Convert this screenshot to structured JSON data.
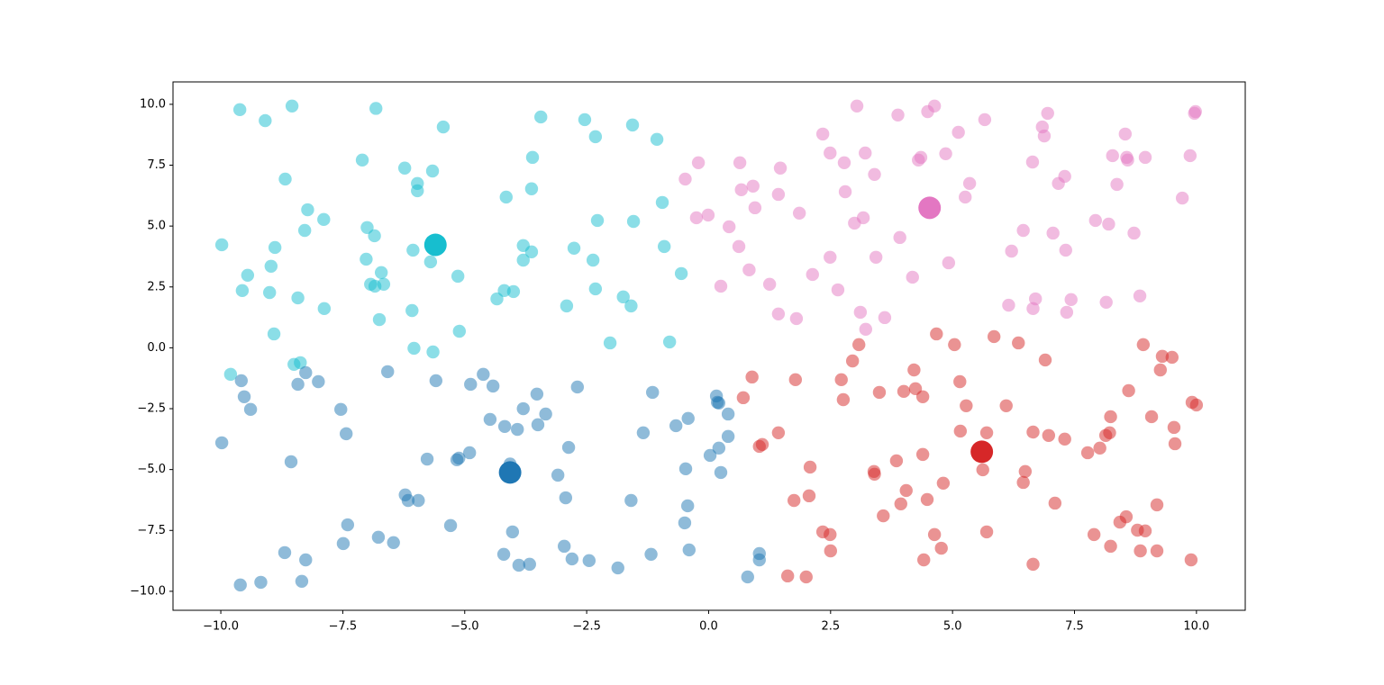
{
  "chart_data": {
    "type": "scatter",
    "xlim": [
      -10.98,
      11.0
    ],
    "ylim": [
      -10.78,
      10.92
    ],
    "xticks": [
      {
        "value": -10,
        "label": "−10.0"
      },
      {
        "value": -7.5,
        "label": "−7.5"
      },
      {
        "value": -5,
        "label": "−5.0"
      },
      {
        "value": -2.5,
        "label": "−2.5"
      },
      {
        "value": 0,
        "label": "0.0"
      },
      {
        "value": 2.5,
        "label": "2.5"
      },
      {
        "value": 5,
        "label": "5.0"
      },
      {
        "value": 7.5,
        "label": "7.5"
      },
      {
        "value": 10,
        "label": "10.0"
      }
    ],
    "yticks": [
      {
        "value": -10,
        "label": "−10.0"
      },
      {
        "value": -7.5,
        "label": "−7.5"
      },
      {
        "value": -5,
        "label": "−5.0"
      },
      {
        "value": -2.5,
        "label": "−2.5"
      },
      {
        "value": 0,
        "label": "0.0"
      },
      {
        "value": 2.5,
        "label": "2.5"
      },
      {
        "value": 5,
        "label": "5.0"
      },
      {
        "value": 7.5,
        "label": "7.5"
      },
      {
        "value": 10,
        "label": "10.0"
      }
    ],
    "grid": false,
    "series": [
      {
        "color": "#17becf",
        "opacity": 0.5,
        "marker_size": 100,
        "x": [
          -9.61,
          -9.09,
          -8.54,
          -6.82,
          -3.44,
          -5.44,
          -2.54,
          -1.56,
          -2.32,
          -1.06,
          -7.1,
          -8.68,
          -6.23,
          -5.66,
          -5.97,
          -5.97,
          -3.61,
          -3.63,
          -4.15,
          -8.22,
          -7.89,
          -8.28,
          -9.98,
          -7.0,
          -6.85,
          -8.89,
          -6.06,
          -2.28,
          -1.54,
          -0.95,
          -0.91,
          -3.8,
          -3.63,
          -2.76,
          -3.8,
          -2.37,
          -7.02,
          -5.7,
          -9.45,
          -8.97,
          -6.71,
          -5.14,
          -0.56,
          -9.56,
          -9.0,
          -6.93,
          -6.84,
          -6.66,
          -8.42,
          -4.19,
          -4.0,
          -4.34,
          -2.32,
          -1.75,
          -2.91,
          -1.59,
          -7.88,
          -6.75,
          -6.08,
          -8.91,
          -5.11,
          -6.04,
          -5.65,
          -2.02,
          -0.8,
          -9.8,
          -8.5,
          -8.37
        ],
        "y": [
          9.78,
          9.33,
          9.93,
          9.83,
          9.48,
          9.07,
          9.37,
          9.15,
          8.67,
          8.56,
          7.71,
          6.93,
          7.38,
          7.26,
          6.75,
          6.45,
          7.82,
          6.53,
          6.19,
          5.67,
          5.27,
          4.82,
          4.23,
          4.94,
          4.6,
          4.12,
          4.01,
          5.23,
          5.19,
          5.97,
          4.16,
          4.2,
          3.94,
          4.09,
          3.6,
          3.6,
          3.64,
          3.53,
          2.98,
          3.35,
          3.09,
          2.94,
          3.05,
          2.35,
          2.27,
          2.61,
          2.53,
          2.61,
          2.05,
          2.35,
          2.31,
          2.01,
          2.42,
          2.09,
          1.72,
          1.72,
          1.61,
          1.16,
          1.53,
          0.57,
          0.68,
          -0.02,
          -0.17,
          0.2,
          0.24,
          -1.09,
          -0.68,
          -0.61
        ]
      },
      {
        "color": "#1f77b4",
        "opacity": 0.5,
        "marker_size": 100,
        "x": [
          -9.58,
          -6.58,
          -8.26,
          -9.52,
          -9.39,
          -8.42,
          -8.0,
          -5.59,
          -4.62,
          -4.88,
          -4.42,
          -3.52,
          -2.69,
          -3.8,
          -3.34,
          -7.54,
          -1.15,
          0.16,
          0.18,
          0.21,
          0.4,
          -4.48,
          -4.18,
          -3.92,
          -3.5,
          -0.67,
          -0.42,
          -9.98,
          -7.43,
          -1.34,
          0.4,
          -2.87,
          0.21,
          -4.9,
          0.03,
          -5.77,
          -5.16,
          -5.12,
          -8.56,
          -4.07,
          -0.47,
          0.25,
          -3.09,
          -6.22,
          -6.16,
          -5.95,
          -2.93,
          -1.59,
          -0.43,
          -7.4,
          -5.29,
          -0.49,
          -4.02,
          -7.49,
          -6.77,
          -6.46,
          -8.69,
          -8.26,
          -4.2,
          -2.96,
          -2.8,
          -2.45,
          -1.18,
          -0.4,
          -3.67,
          -3.89,
          -1.86,
          1.04,
          1.04,
          0.8,
          -9.6,
          -9.18,
          -8.34
        ],
        "y": [
          -1.35,
          -0.98,
          -1.02,
          -2.01,
          -2.53,
          -1.5,
          -1.39,
          -1.35,
          -1.09,
          -1.5,
          -1.57,
          -1.9,
          -1.61,
          -2.5,
          -2.72,
          -2.53,
          -1.83,
          -1.98,
          -2.24,
          -2.27,
          -2.72,
          -2.94,
          -3.23,
          -3.35,
          -3.16,
          -3.2,
          -2.9,
          -3.9,
          -3.53,
          -3.49,
          -3.64,
          -4.09,
          -4.12,
          -4.31,
          -4.42,
          -4.57,
          -4.6,
          -4.53,
          -4.68,
          -4.77,
          -4.97,
          -5.12,
          -5.23,
          -6.04,
          -6.27,
          -6.27,
          -6.16,
          -6.27,
          -6.49,
          -7.27,
          -7.3,
          -7.19,
          -7.56,
          -8.04,
          -7.78,
          -8.0,
          -8.41,
          -8.71,
          -8.48,
          -8.15,
          -8.67,
          -8.74,
          -8.48,
          -8.3,
          -8.89,
          -8.93,
          -9.04,
          -8.45,
          -8.71,
          -9.41,
          -9.74,
          -9.63,
          -9.59
        ]
      },
      {
        "color": "#e377c2",
        "opacity": 0.5,
        "marker_size": 100,
        "x": [
          3.04,
          4.63,
          4.49,
          3.88,
          6.95,
          5.66,
          9.98,
          9.96,
          6.84,
          6.88,
          5.12,
          2.34,
          8.54,
          2.49,
          3.21,
          4.86,
          4.35,
          4.3,
          2.78,
          -0.21,
          0.64,
          8.28,
          8.57,
          8.59,
          8.95,
          9.87,
          6.64,
          1.47,
          3.4,
          7.3,
          -0.48,
          7.17,
          5.35,
          8.37,
          0.91,
          0.67,
          2.8,
          1.43,
          5.26,
          9.71,
          0.95,
          1.86,
          3.17,
          2.99,
          -0.25,
          -0.01,
          0.42,
          6.45,
          7.93,
          8.2,
          7.06,
          8.72,
          0.62,
          3.92,
          6.21,
          7.32,
          2.49,
          3.43,
          4.92,
          0.83,
          2.13,
          4.18,
          1.25,
          0.25,
          2.65,
          8.84,
          6.7,
          7.43,
          8.15,
          6.15,
          6.65,
          7.34,
          3.11,
          1.43,
          1.8,
          3.61,
          3.22
        ],
        "y": [
          9.93,
          9.93,
          9.7,
          9.56,
          9.63,
          9.37,
          9.7,
          9.63,
          9.07,
          8.7,
          8.85,
          8.78,
          8.78,
          8.0,
          8.0,
          7.97,
          7.82,
          7.71,
          7.6,
          7.6,
          7.6,
          7.89,
          7.82,
          7.71,
          7.82,
          7.89,
          7.63,
          7.38,
          7.12,
          7.04,
          6.93,
          6.75,
          6.75,
          6.71,
          6.64,
          6.49,
          6.41,
          6.3,
          6.19,
          6.15,
          5.75,
          5.53,
          5.34,
          5.12,
          5.34,
          5.45,
          4.97,
          4.82,
          5.23,
          5.08,
          4.71,
          4.71,
          4.16,
          4.53,
          3.97,
          4.01,
          3.72,
          3.72,
          3.49,
          3.2,
          3.01,
          2.9,
          2.61,
          2.53,
          2.38,
          2.13,
          2.01,
          1.98,
          1.87,
          1.75,
          1.61,
          1.46,
          1.46,
          1.39,
          1.2,
          1.24,
          0.76
        ]
      },
      {
        "color": "#d62728",
        "opacity": 0.5,
        "marker_size": 100,
        "x": [
          4.67,
          5.85,
          6.35,
          3.08,
          5.04,
          8.91,
          9.3,
          9.5,
          6.9,
          2.95,
          4.21,
          9.26,
          0.89,
          1.78,
          2.72,
          5.15,
          4.24,
          3.5,
          4.0,
          8.61,
          0.71,
          2.76,
          4.39,
          5.28,
          6.1,
          9.91,
          10.0,
          9.08,
          8.24,
          1.43,
          5.16,
          5.7,
          6.65,
          6.97,
          7.3,
          8.22,
          8.14,
          9.54,
          9.56,
          8.02,
          7.77,
          1.1,
          1.04,
          4.39,
          3.85,
          2.08,
          3.39,
          3.4,
          5.62,
          6.49,
          6.45,
          4.81,
          4.05,
          2.06,
          1.75,
          4.48,
          3.94,
          7.1,
          9.19,
          3.58,
          8.56,
          8.43,
          2.34,
          2.49,
          4.63,
          5.7,
          7.9,
          8.79,
          8.95,
          2.5,
          4.77,
          8.24,
          8.85,
          9.19,
          4.41,
          6.65,
          9.89,
          1.62,
          2.0
        ],
        "y": [
          0.57,
          0.46,
          0.2,
          0.13,
          0.13,
          0.13,
          -0.35,
          -0.39,
          -0.5,
          -0.54,
          -0.91,
          -0.91,
          -1.2,
          -1.31,
          -1.31,
          -1.39,
          -1.68,
          -1.83,
          -1.79,
          -1.76,
          -2.05,
          -2.13,
          -2.01,
          -2.38,
          -2.38,
          -2.24,
          -2.35,
          -2.83,
          -2.83,
          -3.49,
          -3.42,
          -3.49,
          -3.46,
          -3.6,
          -3.75,
          -3.49,
          -3.6,
          -3.27,
          -3.94,
          -4.12,
          -4.31,
          -3.97,
          -4.05,
          -4.38,
          -4.64,
          -4.9,
          -5.08,
          -5.19,
          -5.01,
          -5.08,
          -5.53,
          -5.56,
          -5.86,
          -6.08,
          -6.27,
          -6.23,
          -6.41,
          -6.38,
          -6.45,
          -6.9,
          -6.94,
          -7.16,
          -7.56,
          -7.67,
          -7.67,
          -7.56,
          -7.67,
          -7.49,
          -7.52,
          -8.34,
          -8.23,
          -8.15,
          -8.34,
          -8.34,
          -8.71,
          -8.89,
          -8.71,
          -9.37,
          -9.41
        ]
      },
      {
        "color": "#17becf",
        "opacity": 1,
        "marker_size": 300,
        "x": [
          -5.6
        ],
        "y": [
          4.23
        ]
      },
      {
        "color": "#1f77b4",
        "opacity": 1,
        "marker_size": 300,
        "x": [
          -4.07
        ],
        "y": [
          -5.12
        ]
      },
      {
        "color": "#e377c2",
        "opacity": 1,
        "marker_size": 300,
        "x": [
          4.53
        ],
        "y": [
          5.75
        ]
      },
      {
        "color": "#d62728",
        "opacity": 1,
        "marker_size": 300,
        "x": [
          5.6
        ],
        "y": [
          -4.27
        ]
      }
    ]
  }
}
